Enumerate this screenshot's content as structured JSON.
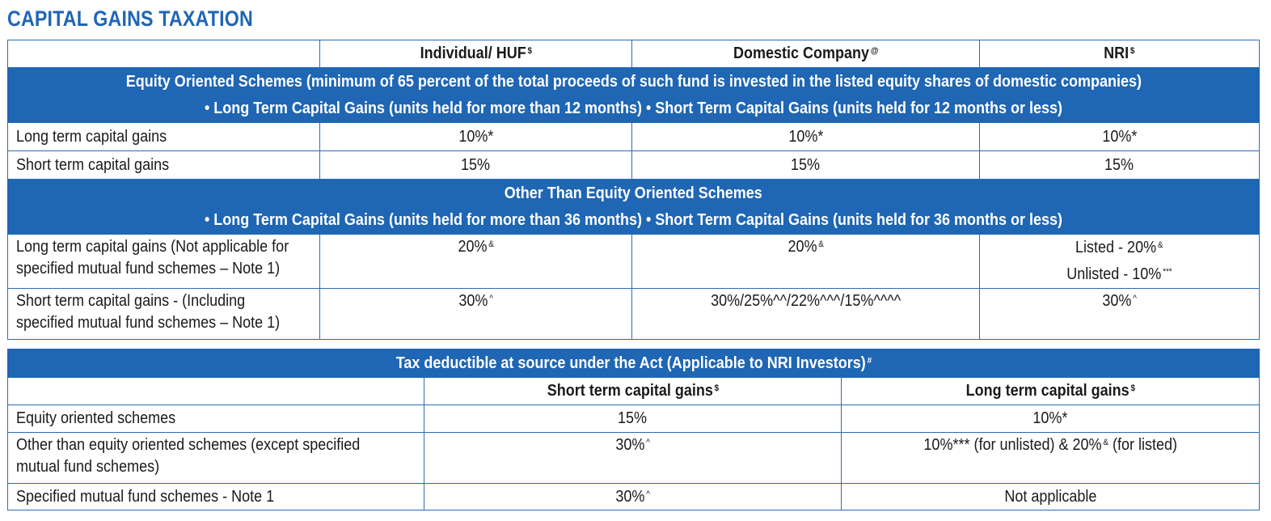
{
  "title": "CAPITAL GAINS TAXATION",
  "table1": {
    "headers": [
      {
        "label": "",
        "sup": ""
      },
      {
        "label": "Individual/ HUF",
        "sup": "$"
      },
      {
        "label": "Domestic Company",
        "sup": "@"
      },
      {
        "label": "NRI",
        "sup": "$"
      }
    ],
    "section1": {
      "line1": "Equity Oriented Schemes (minimum of 65 percent of the total proceeds of such fund is invested in the listed equity shares of domestic companies)",
      "line2": "• Long Term Capital Gains (units held for more than 12 months) • Short Term Capital Gains (units held for 12 months or less)",
      "rows": [
        {
          "label": "Long term capital gains",
          "individual": "10%*",
          "company": "10%*",
          "nri": "10%*"
        },
        {
          "label": "Short term capital gains",
          "individual": "15%",
          "company": "15%",
          "nri": "15%"
        }
      ]
    },
    "section2": {
      "line1": "Other Than Equity Oriented Schemes",
      "line2": "• Long Term Capital Gains (units held for more than 36 months) • Short Term Capital Gains (units held for 36 months or less)",
      "rows": [
        {
          "label_line1": "Long term capital gains (Not applicable for",
          "label_line2": "specified mutual fund schemes – Note 1)",
          "individual": "20%",
          "individual_sup": "&",
          "company": "20%",
          "company_sup": "&",
          "nri_line1": "Listed - 20%",
          "nri_line1_sup": "&",
          "nri_line2": "Unlisted - 10%",
          "nri_line2_sup": "***"
        },
        {
          "label_line1": "Short term capital gains - (Including",
          "label_line2": "specified mutual fund schemes – Note 1)",
          "individual": "30%",
          "individual_sup": "^",
          "company": "30%/25%^^/22%^^^/15%^^^^",
          "nri": "30%",
          "nri_sup": "^"
        }
      ]
    }
  },
  "table2": {
    "title": "Tax deductible at source under the Act (Applicable to NRI Investors)",
    "title_sup": "#",
    "headers": [
      {
        "label": "",
        "sup": ""
      },
      {
        "label": "Short term capital gains",
        "sup": "$"
      },
      {
        "label": "Long term capital gains",
        "sup": "$"
      }
    ],
    "rows": [
      {
        "label_line1": "Equity oriented schemes",
        "label_line2": "",
        "stcg": "15%",
        "stcg_sup": "",
        "ltcg": "10%*"
      },
      {
        "label_line1": "Other than equity oriented schemes (except specified",
        "label_line2": "mutual fund schemes)",
        "stcg": "30%",
        "stcg_sup": "^",
        "ltcg_a": "10%*** (for unlisted) & 20%",
        "ltcg_sup": "&",
        "ltcg_b": " (for listed)"
      },
      {
        "label_line1": "Specified mutual fund schemes - Note 1",
        "label_line2": "",
        "stcg": "30%",
        "stcg_sup": "^",
        "ltcg": "Not applicable"
      }
    ]
  },
  "colors": {
    "accent": "#1f66b4",
    "border": "#2a6db3",
    "text": "#1a1a1a"
  }
}
